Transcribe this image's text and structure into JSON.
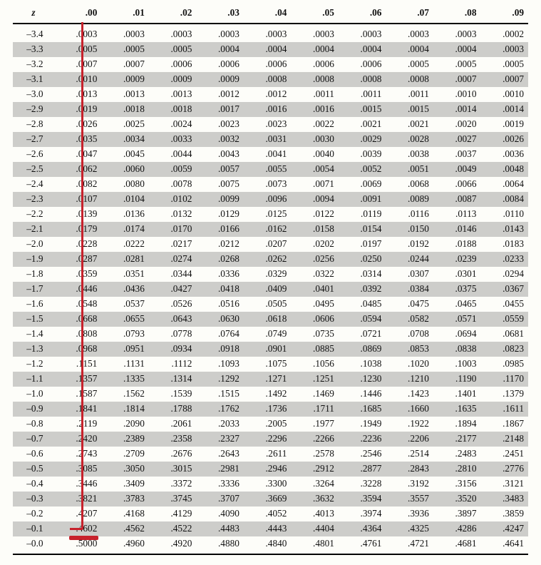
{
  "colors": {
    "background": "#fdfdf9",
    "text": "#111111",
    "alt_row": "#cdcdca",
    "rule": "#000000",
    "annotation": "#c7222c"
  },
  "typography": {
    "font_family": "Georgia, 'Times New Roman', serif",
    "font_size_pt": 10,
    "header_bold": true,
    "z_header_italic": true
  },
  "table": {
    "columns": [
      "z",
      ".00",
      ".01",
      ".02",
      ".03",
      ".04",
      ".05",
      ".06",
      ".07",
      ".08",
      ".09"
    ],
    "column_widths_pct": [
      8,
      9.2,
      9.2,
      9.2,
      9.2,
      9.2,
      9.2,
      9.2,
      9.2,
      9.2,
      9.2
    ],
    "stripe_start_row_index": 1,
    "rows": [
      [
        "–3.4",
        ".0003",
        ".0003",
        ".0003",
        ".0003",
        ".0003",
        ".0003",
        ".0003",
        ".0003",
        ".0003",
        ".0002"
      ],
      [
        "–3.3",
        ".0005",
        ".0005",
        ".0005",
        ".0004",
        ".0004",
        ".0004",
        ".0004",
        ".0004",
        ".0004",
        ".0003"
      ],
      [
        "–3.2",
        ".0007",
        ".0007",
        ".0006",
        ".0006",
        ".0006",
        ".0006",
        ".0006",
        ".0005",
        ".0005",
        ".0005"
      ],
      [
        "–3.1",
        ".0010",
        ".0009",
        ".0009",
        ".0009",
        ".0008",
        ".0008",
        ".0008",
        ".0008",
        ".0007",
        ".0007"
      ],
      [
        "–3.0",
        ".0013",
        ".0013",
        ".0013",
        ".0012",
        ".0012",
        ".0011",
        ".0011",
        ".0011",
        ".0010",
        ".0010"
      ],
      [
        "–2.9",
        ".0019",
        ".0018",
        ".0018",
        ".0017",
        ".0016",
        ".0016",
        ".0015",
        ".0015",
        ".0014",
        ".0014"
      ],
      [
        "–2.8",
        ".0026",
        ".0025",
        ".0024",
        ".0023",
        ".0023",
        ".0022",
        ".0021",
        ".0021",
        ".0020",
        ".0019"
      ],
      [
        "–2.7",
        ".0035",
        ".0034",
        ".0033",
        ".0032",
        ".0031",
        ".0030",
        ".0029",
        ".0028",
        ".0027",
        ".0026"
      ],
      [
        "–2.6",
        ".0047",
        ".0045",
        ".0044",
        ".0043",
        ".0041",
        ".0040",
        ".0039",
        ".0038",
        ".0037",
        ".0036"
      ],
      [
        "–2.5",
        ".0062",
        ".0060",
        ".0059",
        ".0057",
        ".0055",
        ".0054",
        ".0052",
        ".0051",
        ".0049",
        ".0048"
      ],
      [
        "–2.4",
        ".0082",
        ".0080",
        ".0078",
        ".0075",
        ".0073",
        ".0071",
        ".0069",
        ".0068",
        ".0066",
        ".0064"
      ],
      [
        "–2.3",
        ".0107",
        ".0104",
        ".0102",
        ".0099",
        ".0096",
        ".0094",
        ".0091",
        ".0089",
        ".0087",
        ".0084"
      ],
      [
        "–2.2",
        ".0139",
        ".0136",
        ".0132",
        ".0129",
        ".0125",
        ".0122",
        ".0119",
        ".0116",
        ".0113",
        ".0110"
      ],
      [
        "–2.1",
        ".0179",
        ".0174",
        ".0170",
        ".0166",
        ".0162",
        ".0158",
        ".0154",
        ".0150",
        ".0146",
        ".0143"
      ],
      [
        "–2.0",
        ".0228",
        ".0222",
        ".0217",
        ".0212",
        ".0207",
        ".0202",
        ".0197",
        ".0192",
        ".0188",
        ".0183"
      ],
      [
        "–1.9",
        ".0287",
        ".0281",
        ".0274",
        ".0268",
        ".0262",
        ".0256",
        ".0250",
        ".0244",
        ".0239",
        ".0233"
      ],
      [
        "–1.8",
        ".0359",
        ".0351",
        ".0344",
        ".0336",
        ".0329",
        ".0322",
        ".0314",
        ".0307",
        ".0301",
        ".0294"
      ],
      [
        "–1.7",
        ".0446",
        ".0436",
        ".0427",
        ".0418",
        ".0409",
        ".0401",
        ".0392",
        ".0384",
        ".0375",
        ".0367"
      ],
      [
        "–1.6",
        ".0548",
        ".0537",
        ".0526",
        ".0516",
        ".0505",
        ".0495",
        ".0485",
        ".0475",
        ".0465",
        ".0455"
      ],
      [
        "–1.5",
        ".0668",
        ".0655",
        ".0643",
        ".0630",
        ".0618",
        ".0606",
        ".0594",
        ".0582",
        ".0571",
        ".0559"
      ],
      [
        "–1.4",
        ".0808",
        ".0793",
        ".0778",
        ".0764",
        ".0749",
        ".0735",
        ".0721",
        ".0708",
        ".0694",
        ".0681"
      ],
      [
        "–1.3",
        ".0968",
        ".0951",
        ".0934",
        ".0918",
        ".0901",
        ".0885",
        ".0869",
        ".0853",
        ".0838",
        ".0823"
      ],
      [
        "–1.2",
        ".1151",
        ".1131",
        ".1112",
        ".1093",
        ".1075",
        ".1056",
        ".1038",
        ".1020",
        ".1003",
        ".0985"
      ],
      [
        "–1.1",
        ".1357",
        ".1335",
        ".1314",
        ".1292",
        ".1271",
        ".1251",
        ".1230",
        ".1210",
        ".1190",
        ".1170"
      ],
      [
        "–1.0",
        ".1587",
        ".1562",
        ".1539",
        ".1515",
        ".1492",
        ".1469",
        ".1446",
        ".1423",
        ".1401",
        ".1379"
      ],
      [
        "–0.9",
        ".1841",
        ".1814",
        ".1788",
        ".1762",
        ".1736",
        ".1711",
        ".1685",
        ".1660",
        ".1635",
        ".1611"
      ],
      [
        "–0.8",
        ".2119",
        ".2090",
        ".2061",
        ".2033",
        ".2005",
        ".1977",
        ".1949",
        ".1922",
        ".1894",
        ".1867"
      ],
      [
        "–0.7",
        ".2420",
        ".2389",
        ".2358",
        ".2327",
        ".2296",
        ".2266",
        ".2236",
        ".2206",
        ".2177",
        ".2148"
      ],
      [
        "–0.6",
        ".2743",
        ".2709",
        ".2676",
        ".2643",
        ".2611",
        ".2578",
        ".2546",
        ".2514",
        ".2483",
        ".2451"
      ],
      [
        "–0.5",
        ".3085",
        ".3050",
        ".3015",
        ".2981",
        ".2946",
        ".2912",
        ".2877",
        ".2843",
        ".2810",
        ".2776"
      ],
      [
        "–0.4",
        ".3446",
        ".3409",
        ".3372",
        ".3336",
        ".3300",
        ".3264",
        ".3228",
        ".3192",
        ".3156",
        ".3121"
      ],
      [
        "–0.3",
        ".3821",
        ".3783",
        ".3745",
        ".3707",
        ".3669",
        ".3632",
        ".3594",
        ".3557",
        ".3520",
        ".3483"
      ],
      [
        "–0.2",
        ".4207",
        ".4168",
        ".4129",
        ".4090",
        ".4052",
        ".4013",
        ".3974",
        ".3936",
        ".3897",
        ".3859"
      ],
      [
        "–0.1",
        ".4602",
        ".4562",
        ".4522",
        ".4483",
        ".4443",
        ".4404",
        ".4364",
        ".4325",
        ".4286",
        ".4247"
      ],
      [
        "–0.0",
        ".5000",
        ".4960",
        ".4920",
        ".4880",
        ".4840",
        ".4801",
        ".4761",
        ".4721",
        ".4681",
        ".4641"
      ]
    ]
  },
  "annotations": {
    "type": "lookup-highlight",
    "vertical_line_column_index": 1,
    "underline_cell": {
      "row_index": 33,
      "col_index": 1
    },
    "underline_value": ".4602"
  }
}
